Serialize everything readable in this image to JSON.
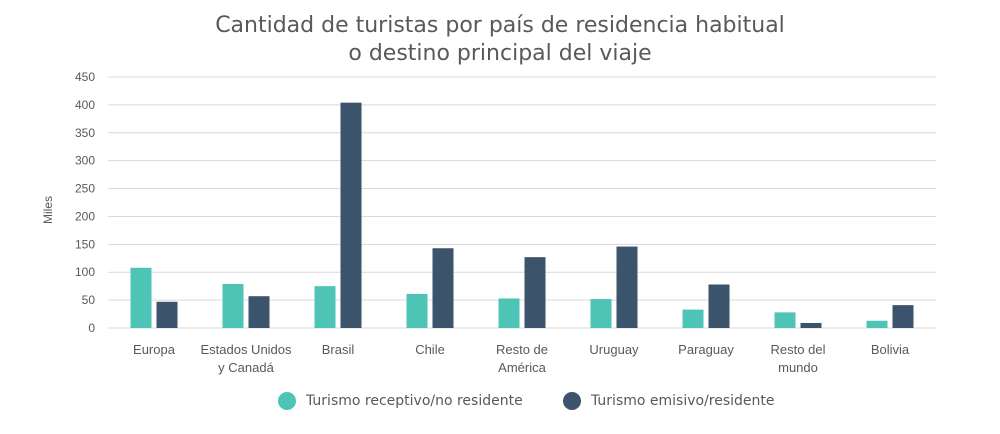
{
  "chart_data": {
    "type": "bar",
    "title_line1": "Cantidad de turistas por país de residencia habitual",
    "title_line2": "o destino principal del viaje",
    "ylabel": "Miles",
    "xlabel": "",
    "ylim": [
      0,
      450
    ],
    "yticks": [
      0,
      50,
      100,
      150,
      200,
      250,
      300,
      350,
      400,
      450
    ],
    "grid": true,
    "legend_position": "bottom",
    "categories": [
      [
        "Europa"
      ],
      [
        "Estados Unidos",
        "y Canadá"
      ],
      [
        "Brasil"
      ],
      [
        "Chile"
      ],
      [
        "Resto de",
        "América"
      ],
      [
        "Uruguay"
      ],
      [
        "Paraguay"
      ],
      [
        "Resto del",
        "mundo"
      ],
      [
        "Bolivia"
      ]
    ],
    "series": [
      {
        "name": "Turismo receptivo/no residente",
        "color": "#4dc4b5",
        "values": [
          108,
          79,
          75,
          61,
          53,
          52,
          33,
          28,
          13
        ]
      },
      {
        "name": "Turismo emisivo/residente",
        "color": "#3b536b",
        "values": [
          47,
          57,
          404,
          143,
          127,
          146,
          78,
          9,
          41
        ]
      }
    ]
  }
}
